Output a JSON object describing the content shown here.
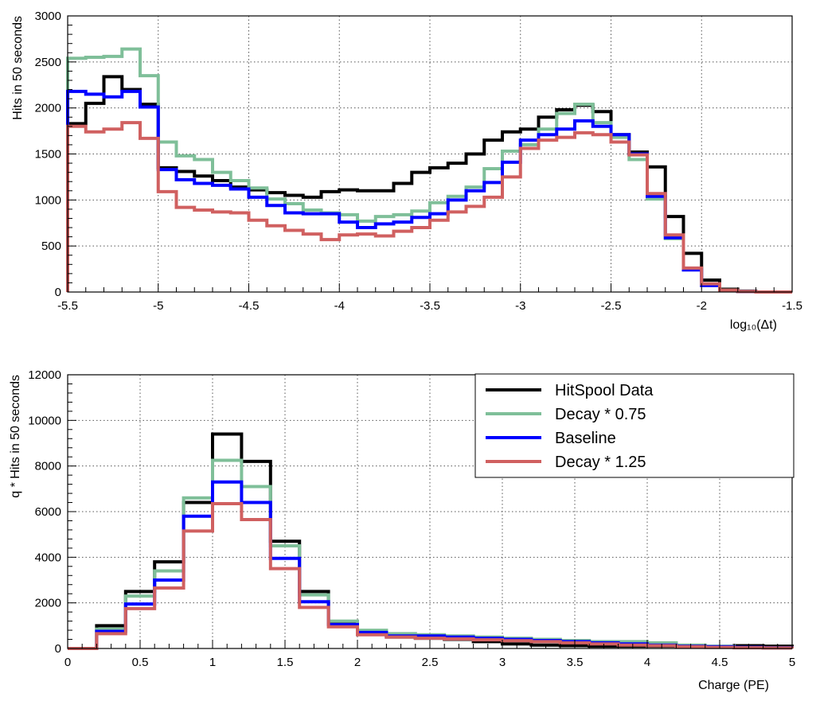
{
  "chart_data": [
    {
      "type": "line",
      "style": "step-histogram",
      "xlabel": "log₁₀(Δt)",
      "ylabel": "Hits in 50 seconds",
      "xlim": [
        -5.5,
        -1.5
      ],
      "ylim": [
        0,
        3000
      ],
      "xticks": [
        -5.5,
        -5,
        -4.5,
        -4,
        -3.5,
        -3,
        -2.5,
        -2,
        -1.5
      ],
      "xtick_labels": [
        "-5.5",
        "-5",
        "-4.5",
        "-4",
        "-3.5",
        "-3",
        "-2.5",
        "-2",
        "-1.5"
      ],
      "yticks": [
        0,
        500,
        1000,
        1500,
        2000,
        2500,
        3000
      ],
      "ytick_labels": [
        "0",
        "500",
        "1000",
        "1500",
        "2000",
        "2500",
        "3000"
      ],
      "grid": true,
      "bin_edges": [
        -5.5,
        -5.4,
        -5.3,
        -5.2,
        -5.1,
        -5.0,
        -4.9,
        -4.8,
        -4.7,
        -4.6,
        -4.5,
        -4.4,
        -4.3,
        -4.2,
        -4.1,
        -4.0,
        -3.9,
        -3.8,
        -3.7,
        -3.6,
        -3.5,
        -3.4,
        -3.3,
        -3.2,
        -3.1,
        -3.0,
        -2.9,
        -2.8,
        -2.7,
        -2.6,
        -2.5,
        -2.4,
        -2.3,
        -2.2,
        -2.1,
        -2.0,
        -1.9,
        -1.8,
        -1.7,
        -1.6,
        -1.5
      ],
      "series": [
        {
          "name": "HitSpool Data",
          "color": "#000000",
          "values": [
            1830,
            2050,
            2340,
            2200,
            2040,
            1350,
            1310,
            1260,
            1210,
            1140,
            1110,
            1080,
            1050,
            1030,
            1090,
            1110,
            1100,
            1100,
            1180,
            1300,
            1350,
            1400,
            1500,
            1650,
            1740,
            1770,
            1900,
            1980,
            2030,
            1960,
            1710,
            1520,
            1360,
            820,
            420,
            130,
            30,
            10,
            0,
            0
          ]
        },
        {
          "name": "Decay * 0.75",
          "color": "#7fbf99",
          "values": [
            2540,
            2550,
            2560,
            2640,
            2350,
            1630,
            1480,
            1440,
            1300,
            1210,
            1130,
            1010,
            960,
            890,
            860,
            840,
            770,
            820,
            840,
            880,
            970,
            1040,
            1140,
            1340,
            1530,
            1600,
            1770,
            1940,
            2040,
            1840,
            1680,
            1440,
            1010,
            580,
            250,
            90,
            20,
            5,
            0,
            0
          ]
        },
        {
          "name": "Baseline",
          "color": "#0000ff",
          "values": [
            2180,
            2150,
            2120,
            2180,
            2010,
            1330,
            1220,
            1180,
            1160,
            1120,
            1030,
            940,
            860,
            850,
            850,
            760,
            700,
            740,
            760,
            810,
            850,
            1000,
            1100,
            1190,
            1410,
            1650,
            1710,
            1770,
            1860,
            1800,
            1710,
            1500,
            1040,
            590,
            240,
            70,
            15,
            5,
            0,
            0
          ]
        },
        {
          "name": "Decay * 1.25",
          "color": "#d06060",
          "values": [
            1800,
            1740,
            1770,
            1840,
            1670,
            1090,
            920,
            890,
            870,
            860,
            780,
            720,
            670,
            630,
            570,
            620,
            630,
            610,
            660,
            700,
            780,
            870,
            930,
            1030,
            1250,
            1560,
            1650,
            1680,
            1730,
            1710,
            1630,
            1490,
            1070,
            620,
            260,
            90,
            20,
            5,
            0,
            0
          ]
        }
      ]
    },
    {
      "type": "line",
      "style": "step-histogram",
      "xlabel": "Charge (PE)",
      "ylabel": "q * Hits in 50 seconds",
      "xlim": [
        0,
        5
      ],
      "ylim": [
        0,
        12000
      ],
      "xticks": [
        0,
        0.5,
        1,
        1.5,
        2,
        2.5,
        3,
        3.5,
        4,
        4.5,
        5
      ],
      "xtick_labels": [
        "0",
        "0.5",
        "1",
        "1.5",
        "2",
        "2.5",
        "3",
        "3.5",
        "4",
        "4.5",
        "5"
      ],
      "yticks": [
        0,
        2000,
        4000,
        6000,
        8000,
        10000,
        12000
      ],
      "ytick_labels": [
        "0",
        "2000",
        "4000",
        "6000",
        "8000",
        "10000",
        "12000"
      ],
      "grid": true,
      "legend_position": "top-right",
      "bin_edges": [
        0,
        0.2,
        0.4,
        0.6,
        0.8,
        1.0,
        1.2,
        1.4,
        1.6,
        1.8,
        2.0,
        2.2,
        2.4,
        2.6,
        2.8,
        3.0,
        3.2,
        3.4,
        3.6,
        3.8,
        4.0,
        4.2,
        4.4,
        4.6,
        4.8,
        5.0
      ],
      "series": [
        {
          "name": "HitSpool Data",
          "color": "#000000",
          "values": [
            0,
            1000,
            2500,
            3800,
            6400,
            9400,
            8200,
            4700,
            2500,
            1100,
            700,
            500,
            450,
            400,
            300,
            200,
            150,
            120,
            100,
            100,
            100,
            100,
            80,
            120,
            100
          ]
        },
        {
          "name": "Decay * 0.75",
          "color": "#7fbf99",
          "values": [
            0,
            850,
            2300,
            3400,
            6600,
            8250,
            7100,
            4500,
            2350,
            1200,
            800,
            650,
            600,
            550,
            500,
            450,
            400,
            350,
            300,
            300,
            250,
            150,
            100,
            50,
            30
          ]
        },
        {
          "name": "Baseline",
          "color": "#0000ff",
          "values": [
            0,
            750,
            1950,
            3000,
            5800,
            7300,
            6400,
            3950,
            2050,
            1050,
            700,
            550,
            550,
            500,
            450,
            400,
            350,
            300,
            250,
            200,
            150,
            100,
            80,
            50,
            30
          ]
        },
        {
          "name": "Decay * 1.25",
          "color": "#d06060",
          "values": [
            0,
            650,
            1750,
            2650,
            5150,
            6350,
            5650,
            3500,
            1800,
            950,
            600,
            500,
            450,
            420,
            380,
            340,
            300,
            250,
            200,
            150,
            120,
            80,
            50,
            30,
            20
          ]
        }
      ]
    }
  ]
}
